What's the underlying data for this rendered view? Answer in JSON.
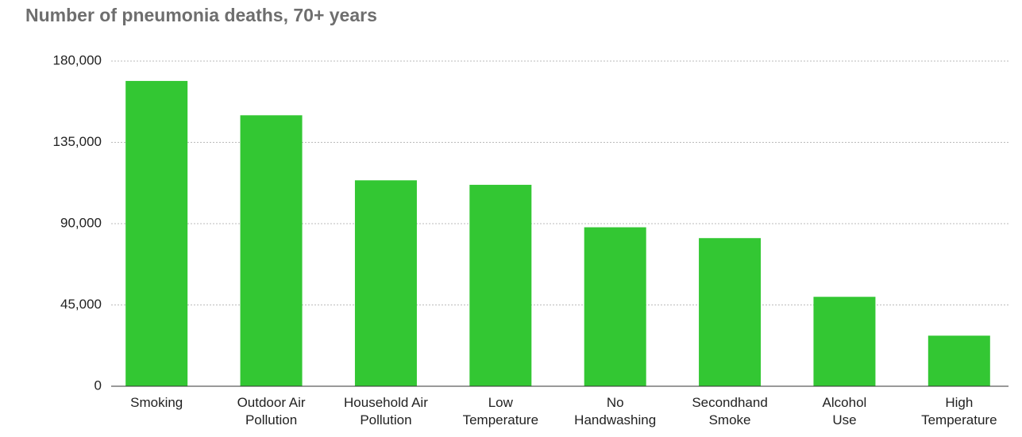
{
  "chart_data": {
    "type": "bar",
    "title": "Number of pneumonia deaths, 70+ years",
    "categories": [
      "Smoking",
      "Outdoor Air\nPollution",
      "Household Air\nPollution",
      "Low\nTemperature",
      "No\nHandwashing",
      "Secondhand\nSmoke",
      "Alcohol\nUse",
      "High\nTemperature"
    ],
    "values": [
      169000,
      150000,
      114000,
      111500,
      88000,
      82000,
      49500,
      28000
    ],
    "color": "#33c733",
    "ylim": [
      0,
      180000
    ],
    "yticks": [
      0,
      {
        "value": 45000,
        "label": "45,000"
      },
      {
        "value": 90000,
        "label": "90,000"
      },
      {
        "value": 135000,
        "label": "135,000"
      },
      {
        "value": 180000,
        "label": "180,000"
      }
    ],
    "grid": true
  }
}
